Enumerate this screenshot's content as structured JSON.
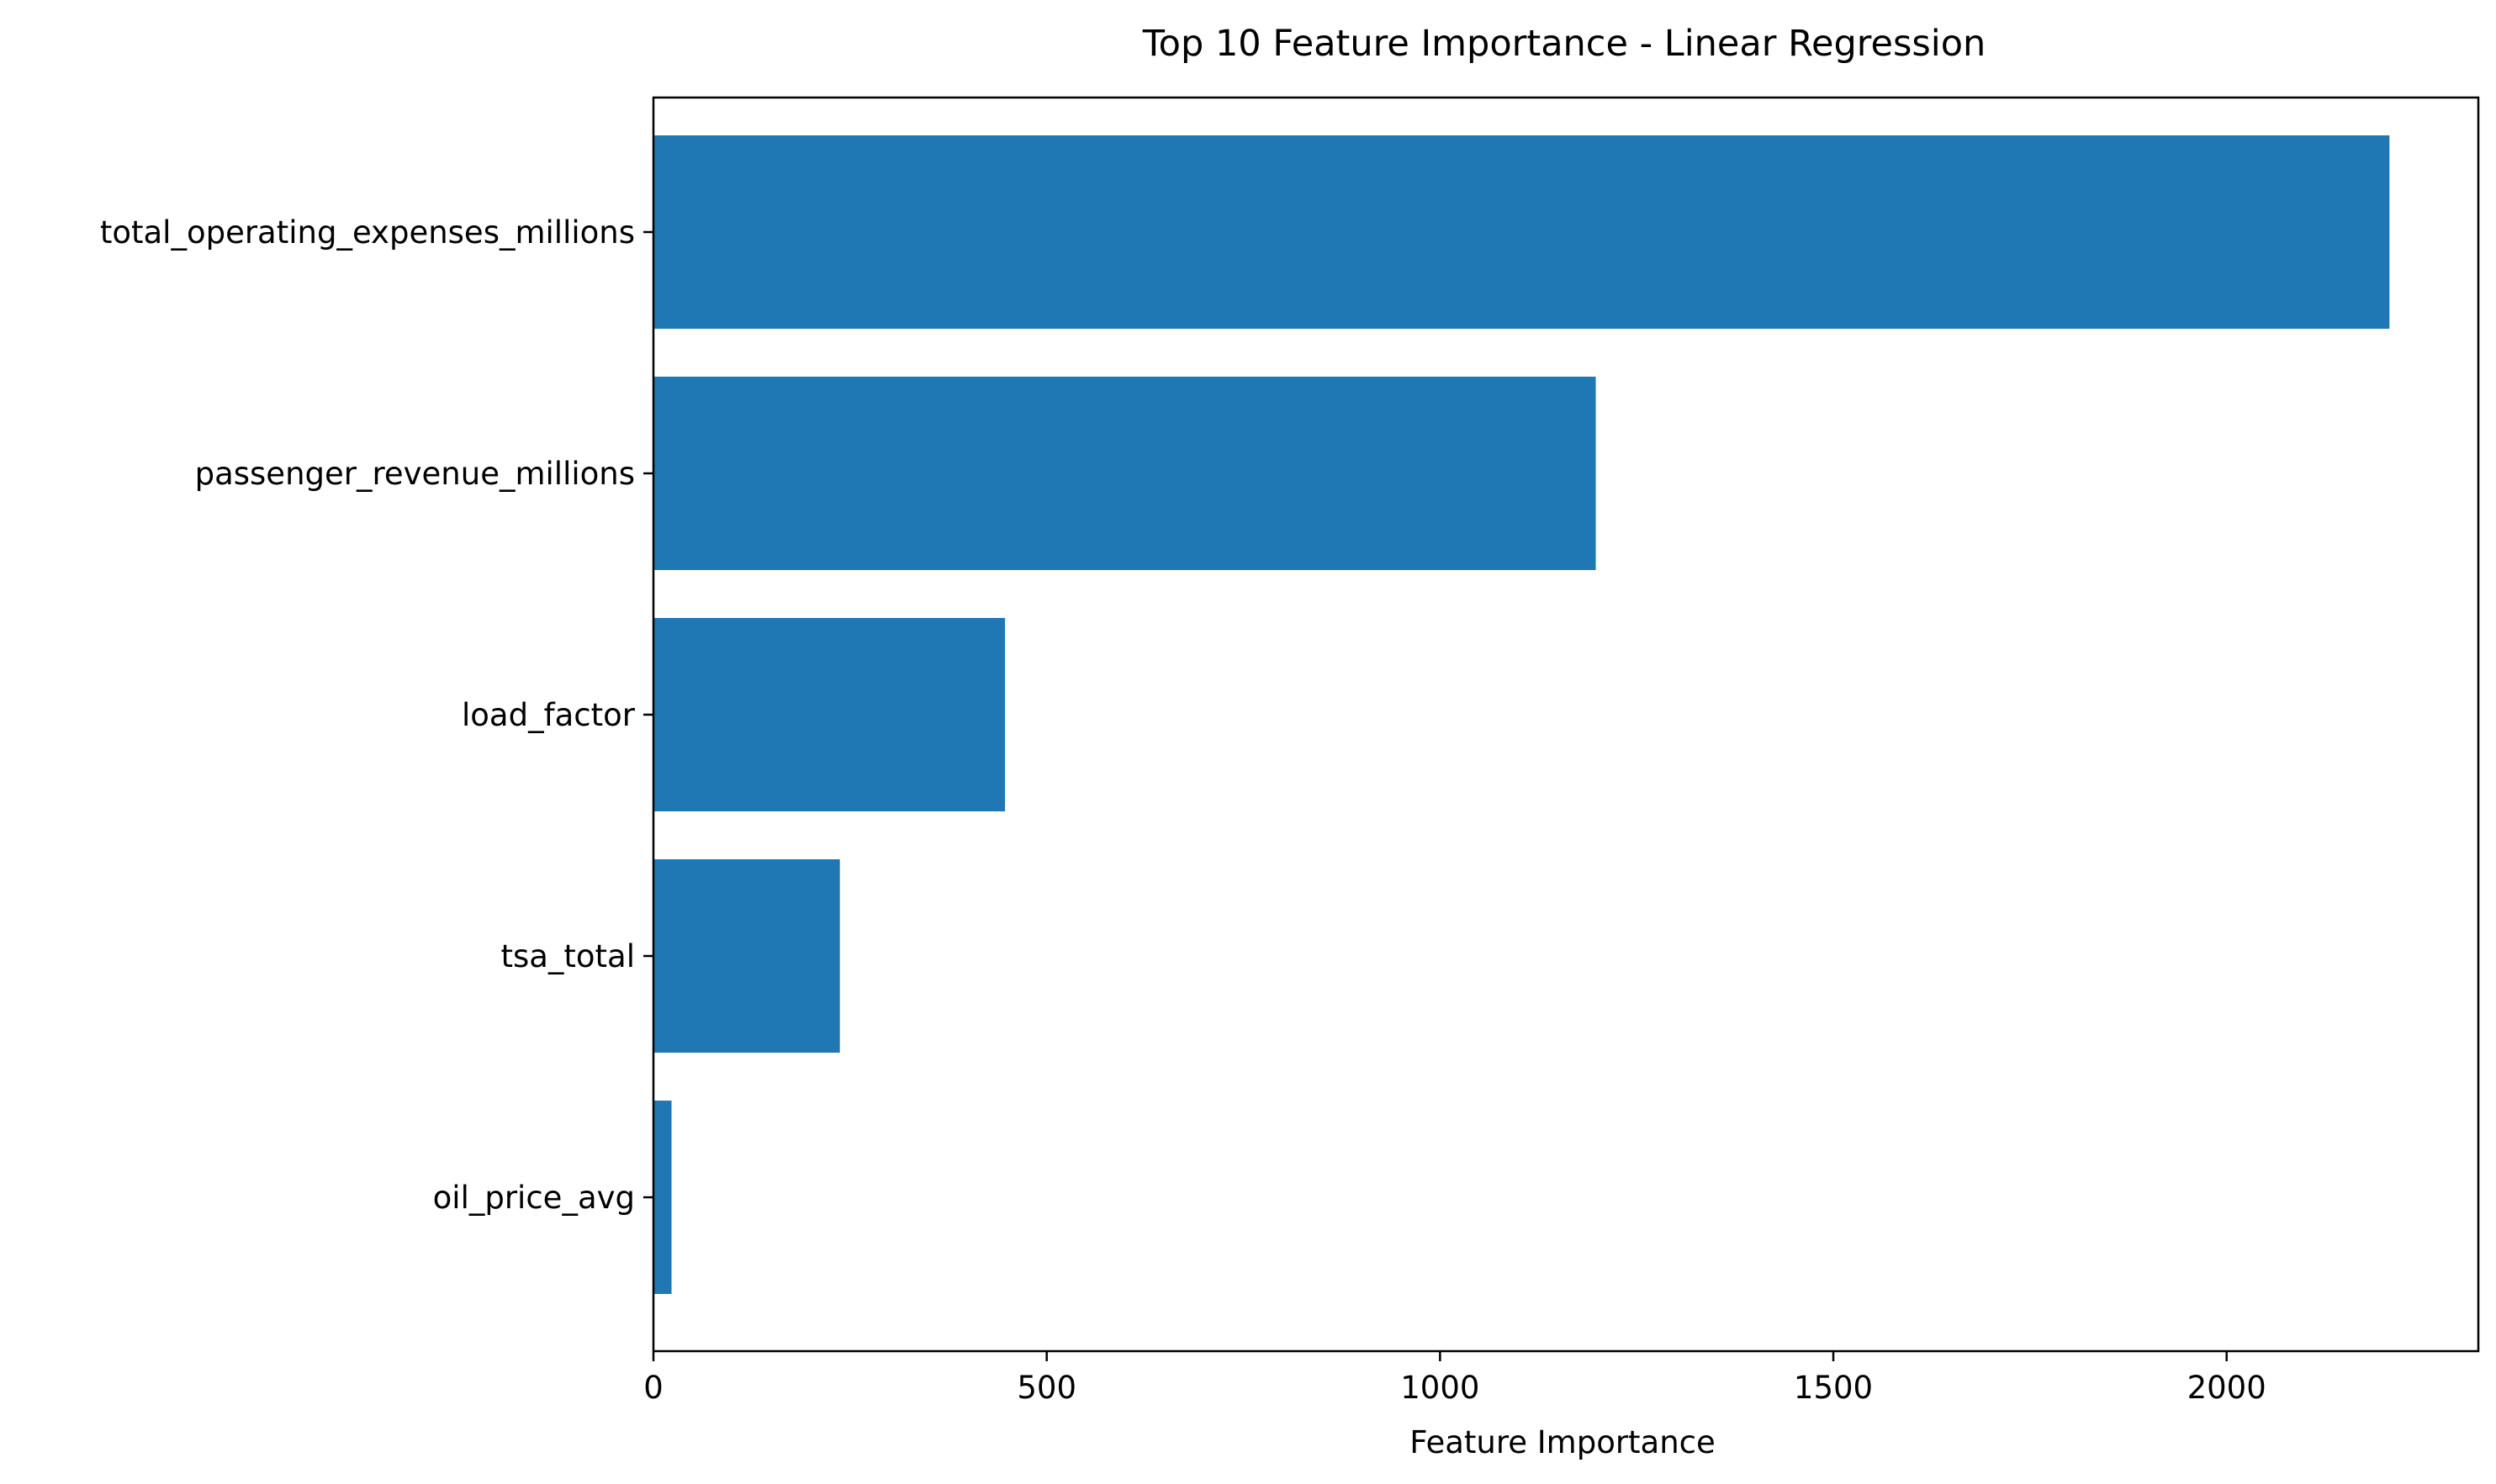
{
  "chart_data": {
    "type": "bar",
    "orientation": "horizontal",
    "title": "Top 10 Feature Importance - Linear Regression",
    "xlabel": "Feature Importance",
    "ylabel": "",
    "categories": [
      "total_operating_expenses_millions",
      "passenger_revenue_millions",
      "load_factor",
      "tsa_total",
      "oil_price_avg"
    ],
    "values": [
      2207,
      1198,
      447,
      237,
      23
    ],
    "xlim": [
      0,
      2320
    ],
    "xticks": [
      0,
      500,
      1000,
      1500,
      2000
    ],
    "xtick_labels": [
      "0",
      "500",
      "1000",
      "1500",
      "2000"
    ],
    "grid": false,
    "bar_color": "#1f77b4"
  }
}
